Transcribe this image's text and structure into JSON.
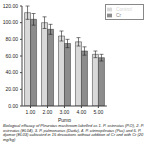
{
  "chart_data": {
    "type": "bar",
    "caption": "Biological efficacy of Pleurotus mushroom labelled as 1. P. ostreatus (P.O), 2. P. ostreatus (EL04), 3. P. pulmonarius (Dudu), 4. P. citrinopileatus (Pcc) and 5. P. djamor (EL03) cultivated in 15 decoctions without addition of Cr and with Cr (20 mg/kg)",
    "x_label": "Pump",
    "categories": [
      "1.00",
      "2.00",
      "3.00",
      "4.00",
      "5.00"
    ],
    "series": [
      {
        "name": "Control",
        "color": "#d9d9d9",
        "values": [
          112,
          100,
          84,
          77,
          62
        ],
        "errors": [
          8,
          7,
          6,
          5,
          4
        ]
      },
      {
        "name": "Cr",
        "color": "#8c8c8c",
        "values": [
          104,
          92,
          75,
          66,
          58
        ],
        "errors": [
          7,
          6,
          5,
          5,
          4
        ]
      }
    ],
    "ylim": [
      0,
      120
    ],
    "yticks": [
      {
        "value": 0,
        "label": "0.00"
      },
      {
        "value": 20,
        "label": "20.00"
      },
      {
        "value": 40,
        "label": "40.00"
      },
      {
        "value": 60,
        "label": "60.00"
      },
      {
        "value": 80,
        "label": "80.00"
      },
      {
        "value": 100,
        "label": "100.00"
      },
      {
        "value": 120,
        "label": "120.00"
      }
    ],
    "legend": "top-right"
  }
}
